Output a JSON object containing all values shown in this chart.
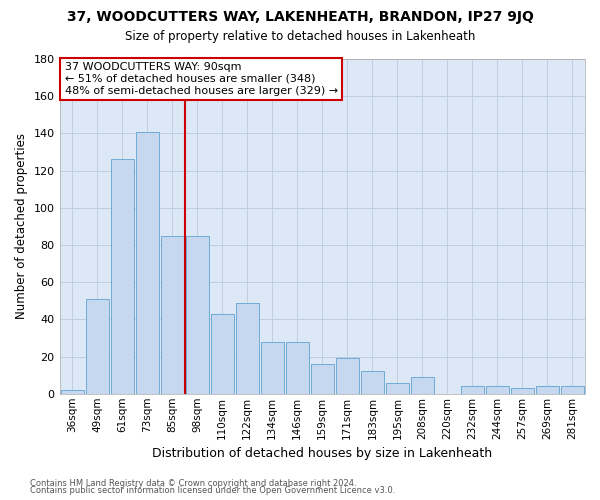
{
  "title1": "37, WOODCUTTERS WAY, LAKENHEATH, BRANDON, IP27 9JQ",
  "title2": "Size of property relative to detached houses in Lakenheath",
  "xlabel": "Distribution of detached houses by size in Lakenheath",
  "ylabel": "Number of detached properties",
  "categories": [
    "36sqm",
    "49sqm",
    "61sqm",
    "73sqm",
    "85sqm",
    "98sqm",
    "110sqm",
    "122sqm",
    "134sqm",
    "146sqm",
    "159sqm",
    "171sqm",
    "183sqm",
    "195sqm",
    "208sqm",
    "220sqm",
    "232sqm",
    "244sqm",
    "257sqm",
    "269sqm",
    "281sqm"
  ],
  "values": [
    2,
    51,
    126,
    141,
    85,
    85,
    43,
    49,
    28,
    28,
    16,
    19,
    12,
    6,
    9,
    0,
    4,
    4,
    3,
    4,
    4
  ],
  "bar_color": "#c5d8ef",
  "bar_edge_color": "#6faad4",
  "vline_color": "#cc0000",
  "vline_x": 4.5,
  "annotation_line1": "37 WOODCUTTERS WAY: 90sqm",
  "annotation_line2": "← 51% of detached houses are smaller (348)",
  "annotation_line3": "48% of semi-detached houses are larger (329) →",
  "annotation_box_color": "#ffffff",
  "annotation_box_edge": "#cc0000",
  "ylim": [
    0,
    180
  ],
  "yticks": [
    0,
    20,
    40,
    60,
    80,
    100,
    120,
    140,
    160,
    180
  ],
  "footer1": "Contains HM Land Registry data © Crown copyright and database right 2024.",
  "footer2": "Contains public sector information licensed under the Open Government Licence v3.0.",
  "bg_color": "#ffffff",
  "axes_bg_color": "#dce8f5",
  "grid_color": "#c0cfe0"
}
